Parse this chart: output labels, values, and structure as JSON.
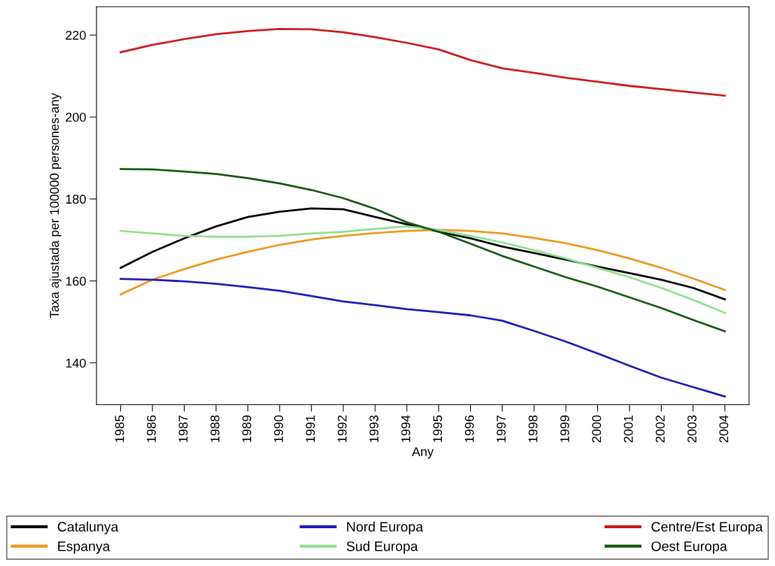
{
  "chart_data": {
    "type": "line",
    "xlabel": "Any",
    "ylabel": "Taxa ajustada per 100000 persones-any",
    "x": [
      1985,
      1986,
      1987,
      1988,
      1989,
      1990,
      1991,
      1992,
      1993,
      1994,
      1995,
      1996,
      1997,
      1998,
      1999,
      2000,
      2001,
      2002,
      2003,
      2004
    ],
    "series": [
      {
        "name": "Catalunya",
        "color": "#000000",
        "values": [
          163.2,
          167.1,
          170.4,
          173.3,
          175.6,
          176.9,
          177.7,
          177.5,
          175.6,
          173.8,
          172.0,
          170.4,
          168.4,
          166.8,
          165.2,
          163.5,
          161.9,
          160.3,
          158.3,
          155.5
        ]
      },
      {
        "name": "Espanya",
        "color": "#f0961e",
        "values": [
          156.7,
          160.3,
          162.9,
          165.2,
          167.1,
          168.8,
          170.1,
          171.0,
          171.7,
          172.2,
          172.5,
          172.2,
          171.6,
          170.5,
          169.2,
          167.5,
          165.5,
          163.2,
          160.6,
          157.8
        ]
      },
      {
        "name": "Nord Europa",
        "color": "#1a1ab4",
        "values": [
          160.5,
          160.3,
          159.9,
          159.3,
          158.5,
          157.6,
          156.3,
          155.0,
          154.1,
          153.1,
          152.4,
          151.6,
          150.3,
          147.8,
          145.2,
          142.3,
          139.3,
          136.4,
          134.1,
          131.8
        ]
      },
      {
        "name": "Sud Europa",
        "color": "#8ee08e",
        "values": [
          172.2,
          171.6,
          171.0,
          170.8,
          170.8,
          171.0,
          171.6,
          172.0,
          172.7,
          173.3,
          172.5,
          171.0,
          169.4,
          167.5,
          165.5,
          163.2,
          160.9,
          158.3,
          155.4,
          152.2
        ]
      },
      {
        "name": "Centre/Est Europa",
        "color": "#cc1a1a",
        "values": [
          215.8,
          217.6,
          219.0,
          220.2,
          221.0,
          221.5,
          221.4,
          220.7,
          219.5,
          218.1,
          216.5,
          213.9,
          211.9,
          210.8,
          209.6,
          208.6,
          207.6,
          206.8,
          206.0,
          205.2
        ]
      },
      {
        "name": "Oest Europa",
        "color": "#115511",
        "values": [
          187.3,
          187.2,
          186.7,
          186.1,
          185.1,
          183.8,
          182.2,
          180.2,
          177.6,
          174.3,
          172.0,
          169.1,
          166.1,
          163.5,
          160.9,
          158.6,
          156.0,
          153.4,
          150.5,
          147.7
        ]
      }
    ],
    "xlim": [
      1984.24,
      2004.76
    ],
    "xticks": [
      1985,
      1986,
      1987,
      1988,
      1989,
      1990,
      1991,
      1992,
      1993,
      1994,
      1995,
      1996,
      1997,
      1998,
      1999,
      2000,
      2001,
      2002,
      2003,
      2004
    ],
    "ylim": [
      129.8,
      226.9
    ],
    "yticks": [
      140,
      160,
      180,
      200,
      220
    ],
    "grid": false,
    "legend": "bottom"
  }
}
